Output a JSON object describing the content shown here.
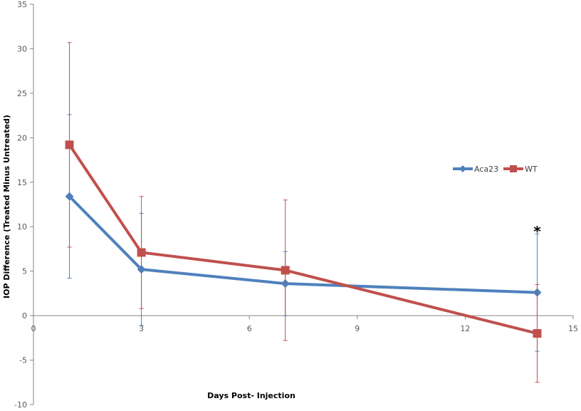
{
  "chart_data": {
    "type": "line",
    "title": "",
    "xlabel": "Days Post- Injection",
    "ylabel": "IOP Difference (Treated Minus Untreated)",
    "xlim": [
      0,
      15
    ],
    "ylim": [
      -10,
      35
    ],
    "xticks": [
      0,
      3,
      6,
      9,
      12,
      15
    ],
    "yticks": [
      -10,
      -5,
      0,
      5,
      10,
      15,
      20,
      25,
      30,
      35
    ],
    "grid": false,
    "legend_position": "right",
    "series": [
      {
        "name": "Aca23",
        "color": "#4f81bd",
        "marker": "diamond",
        "x": [
          1,
          3,
          7,
          14
        ],
        "y": [
          13.4,
          5.2,
          3.6,
          2.6
        ],
        "error": [
          9.2,
          6.3,
          3.6,
          6.6
        ]
      },
      {
        "name": "WT",
        "color": "#c0504d",
        "marker": "square",
        "x": [
          1,
          3,
          7,
          14
        ],
        "y": [
          19.2,
          7.1,
          5.1,
          -2.0
        ],
        "error": [
          11.5,
          6.3,
          7.9,
          5.5
        ]
      }
    ],
    "annotations": [
      {
        "text": "*",
        "x": 14,
        "y": 10
      }
    ]
  }
}
